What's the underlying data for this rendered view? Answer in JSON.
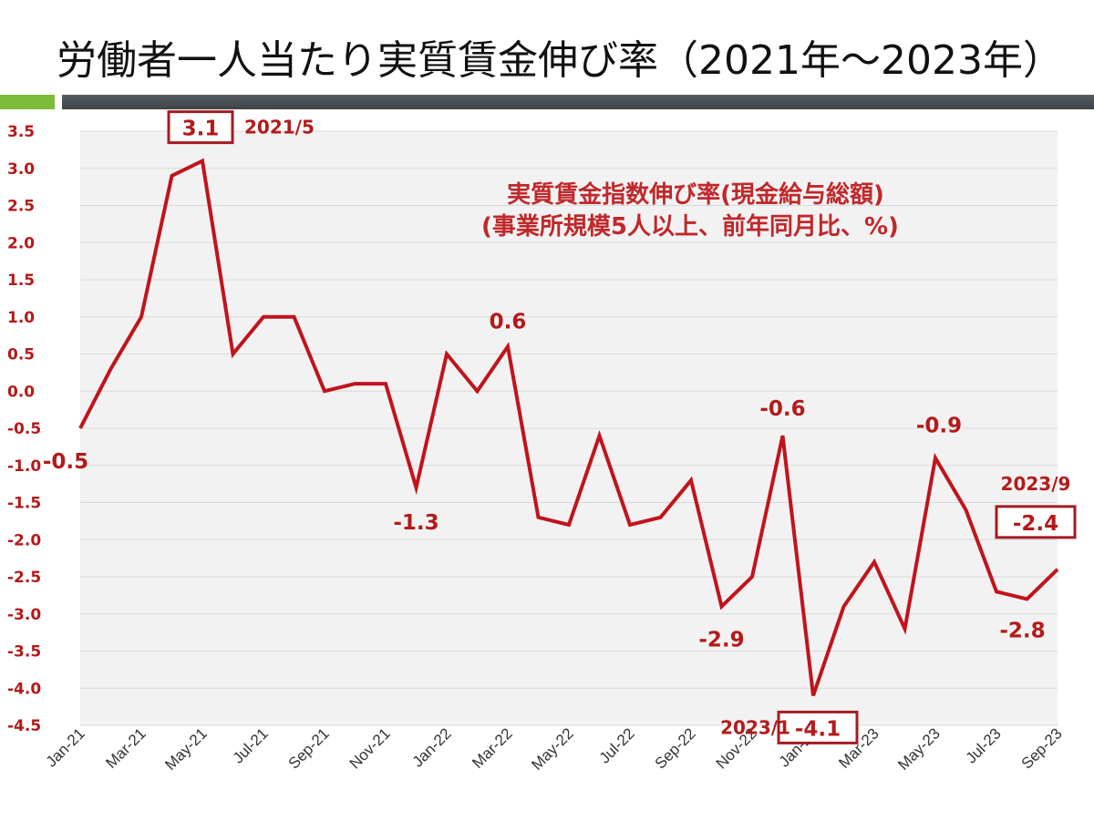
{
  "title": "労働者一人当たり実質賃金伸び率（2021年～2023年）",
  "colors": {
    "line": "#c0141c",
    "label": "#b41a1a",
    "grid": "#d9d9d9",
    "plot_bg": "#f2f2f2",
    "accent_green": "#7dbb3a",
    "band_dark": "#474d51"
  },
  "chart_data": {
    "type": "line",
    "categories": [
      "Jan-21",
      "Feb-21",
      "Mar-21",
      "Apr-21",
      "May-21",
      "Jun-21",
      "Jul-21",
      "Aug-21",
      "Sep-21",
      "Oct-21",
      "Nov-21",
      "Dec-21",
      "Jan-22",
      "Feb-22",
      "Mar-22",
      "Apr-22",
      "May-22",
      "Jun-22",
      "Jul-22",
      "Aug-22",
      "Sep-22",
      "Oct-22",
      "Nov-22",
      "Dec-22",
      "Jan-23",
      "Feb-23",
      "Mar-23",
      "Apr-23",
      "May-23",
      "Jun-23",
      "Jul-23",
      "Aug-23",
      "Sep-23"
    ],
    "x_tick_labels": [
      "Jan-21",
      "Mar-21",
      "May-21",
      "Jul-21",
      "Sep-21",
      "Nov-21",
      "Jan-22",
      "Mar-22",
      "May-22",
      "Jul-22",
      "Sep-22",
      "Nov-22",
      "Jan-23",
      "Mar-23",
      "May-23",
      "Jul-23",
      "Sep-23"
    ],
    "values": [
      -0.5,
      0.3,
      1.0,
      2.9,
      3.1,
      0.5,
      1.0,
      1.0,
      0.0,
      0.1,
      0.1,
      -1.3,
      0.5,
      0.0,
      0.6,
      -1.7,
      -1.8,
      -0.6,
      -1.8,
      -1.7,
      -1.2,
      -2.9,
      -2.5,
      -0.6,
      -4.1,
      -2.9,
      -2.3,
      -3.2,
      -0.9,
      -1.6,
      -2.7,
      -2.8,
      -2.4
    ],
    "ylim": [
      -4.5,
      3.5
    ],
    "y_ticks": [
      "3.5",
      "3.0",
      "2.5",
      "2.0",
      "1.5",
      "1.0",
      "0.5",
      "0.0",
      "-0.5",
      "-1.0",
      "-1.5",
      "-2.0",
      "-2.5",
      "-3.0",
      "-3.5",
      "-4.0",
      "-4.5"
    ],
    "grid": true,
    "annotation_lines": [
      "実質賃金指数伸び率(現金給与総額)",
      "(事業所規模5人以上、前年同月比、%)"
    ],
    "data_labels": [
      {
        "index": 0,
        "text": "-0.5"
      },
      {
        "index": 4,
        "text": "3.1",
        "boxed": true,
        "date": "2021/5"
      },
      {
        "index": 11,
        "text": "-1.3"
      },
      {
        "index": 14,
        "text": "0.6"
      },
      {
        "index": 21,
        "text": "-2.9"
      },
      {
        "index": 23,
        "text": "-0.6"
      },
      {
        "index": 24,
        "text": "-4.1",
        "boxed": true,
        "date": "2023/1"
      },
      {
        "index": 28,
        "text": "-0.9"
      },
      {
        "index": 31,
        "text": "-2.8"
      },
      {
        "index": 32,
        "text": "-2.4",
        "boxed": true,
        "date": "2023/9"
      }
    ]
  }
}
